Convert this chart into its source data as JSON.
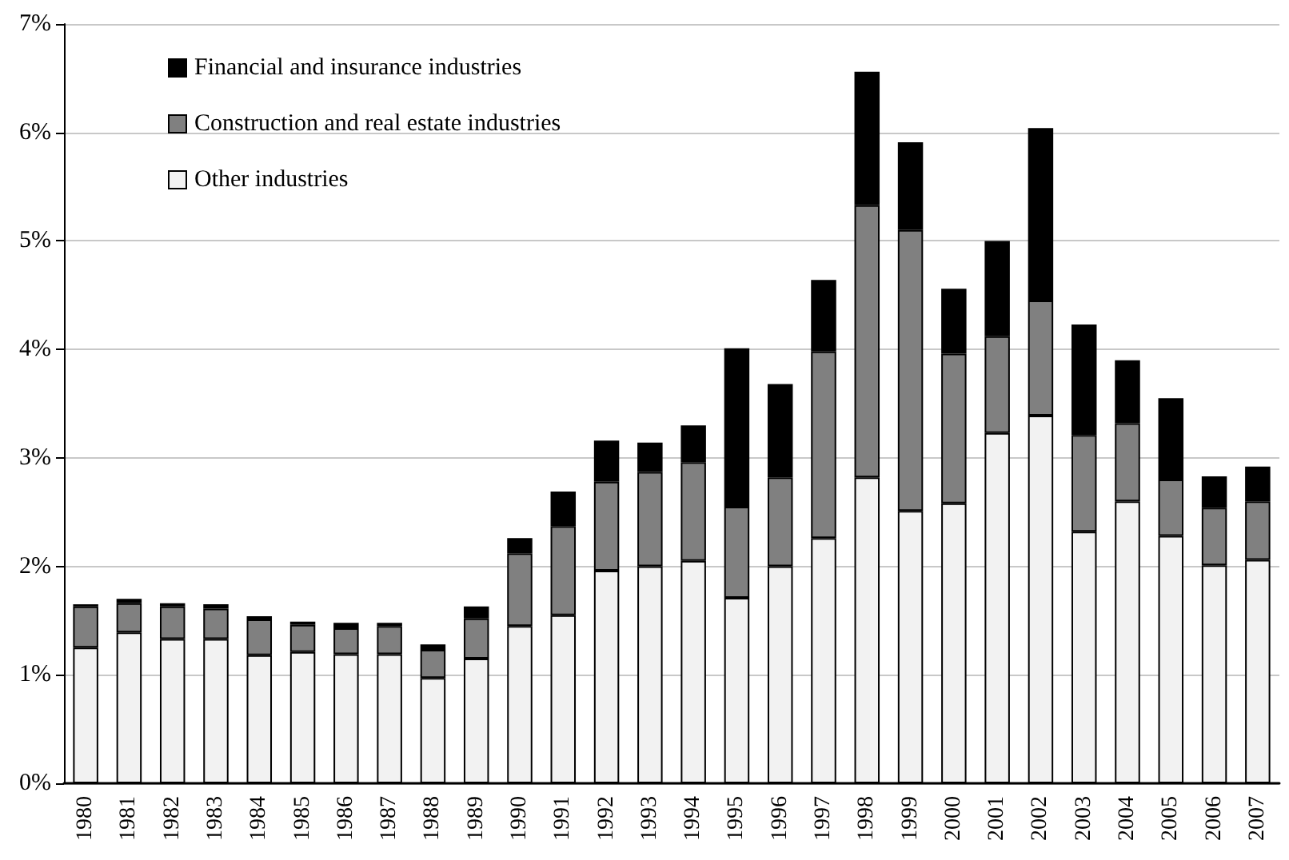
{
  "chart_data": {
    "type": "bar",
    "stacked": true,
    "categories": [
      "1980",
      "1981",
      "1982",
      "1983",
      "1984",
      "1985",
      "1986",
      "1987",
      "1988",
      "1989",
      "1990",
      "1991",
      "1992",
      "1993",
      "1994",
      "1995",
      "1996",
      "1997",
      "1998",
      "1999",
      "2000",
      "2001",
      "2002",
      "2003",
      "2004",
      "2005",
      "2006",
      "2007"
    ],
    "series": [
      {
        "name": "Other industries",
        "color": "#f2f2f2",
        "values": [
          1.25,
          1.39,
          1.33,
          1.33,
          1.18,
          1.21,
          1.19,
          1.19,
          0.97,
          1.15,
          1.45,
          1.55,
          1.96,
          2.0,
          2.05,
          1.71,
          2.0,
          2.26,
          2.82,
          2.51,
          2.58,
          3.23,
          3.39,
          2.32,
          2.6,
          2.28,
          2.01,
          2.06
        ]
      },
      {
        "name": "Construction and real estate industries",
        "color": "#808080",
        "values": [
          0.38,
          0.27,
          0.3,
          0.28,
          0.33,
          0.25,
          0.24,
          0.26,
          0.26,
          0.37,
          0.67,
          0.82,
          0.82,
          0.87,
          0.91,
          0.84,
          0.82,
          1.72,
          2.51,
          2.59,
          1.38,
          0.89,
          1.06,
          0.89,
          0.72,
          0.52,
          0.53,
          0.54
        ]
      },
      {
        "name": "Financial and insurance industries",
        "color": "#000000",
        "values": [
          0.02,
          0.04,
          0.03,
          0.04,
          0.03,
          0.03,
          0.05,
          0.03,
          0.05,
          0.11,
          0.14,
          0.32,
          0.38,
          0.27,
          0.34,
          1.46,
          0.86,
          0.66,
          1.23,
          0.81,
          0.6,
          0.88,
          1.59,
          1.02,
          0.58,
          0.75,
          0.29,
          0.32
        ]
      }
    ],
    "ylim": [
      0,
      7
    ],
    "yticks": [
      {
        "value": 0,
        "label": "0%"
      },
      {
        "value": 1,
        "label": "1%"
      },
      {
        "value": 2,
        "label": "2%"
      },
      {
        "value": 3,
        "label": "3%"
      },
      {
        "value": 4,
        "label": "4%"
      },
      {
        "value": 5,
        "label": "5%"
      },
      {
        "value": 6,
        "label": "6%"
      },
      {
        "value": 7,
        "label": "7%"
      }
    ],
    "grid": "y",
    "legend": "top left"
  }
}
